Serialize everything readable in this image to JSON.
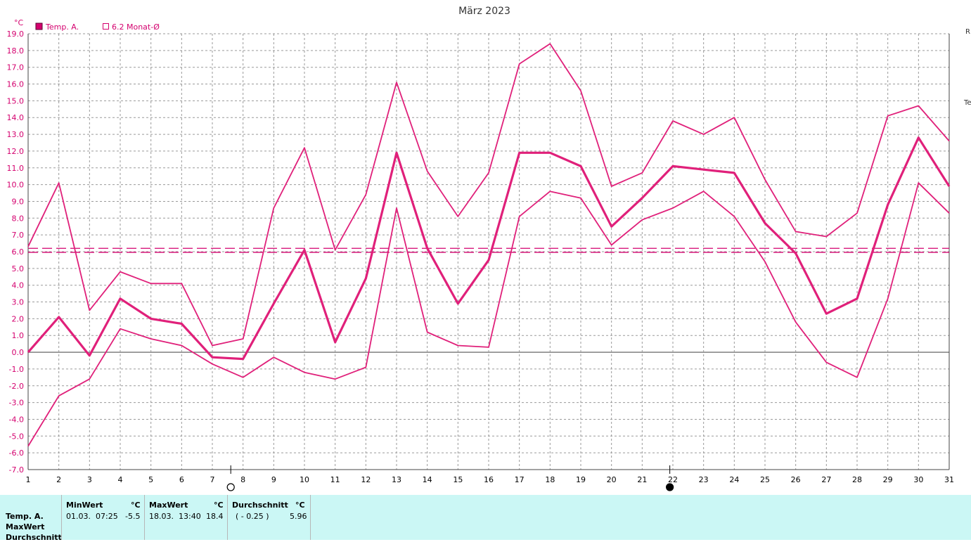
{
  "chart_data": {
    "type": "line",
    "title": "März 2023",
    "y_unit": "°C",
    "ylim": [
      -7,
      19
    ],
    "y_ticks": [
      "19.0",
      "18.0",
      "17.0",
      "16.0",
      "15.0",
      "14.0",
      "13.0",
      "12.0",
      "11.0",
      "10.0",
      "9.0",
      "8.0",
      "7.0",
      "6.0",
      "5.0",
      "4.0",
      "3.0",
      "2.0",
      "1.0",
      "0.0",
      "-1.0",
      "-2.0",
      "-3.0",
      "-4.0",
      "-5.0",
      "-6.0",
      "-7.0"
    ],
    "x": [
      1,
      2,
      3,
      4,
      5,
      6,
      7,
      8,
      9,
      10,
      11,
      12,
      13,
      14,
      15,
      16,
      17,
      18,
      19,
      20,
      21,
      22,
      23,
      24,
      25,
      26,
      27,
      28,
      29,
      30,
      31
    ],
    "x_ticks": [
      "1",
      "2",
      "3",
      "4",
      "5",
      "6",
      "7",
      "8",
      "9",
      "10",
      "11",
      "12",
      "13",
      "14",
      "15",
      "16",
      "17",
      "18",
      "19",
      "20",
      "21",
      "22",
      "23",
      "24",
      "25",
      "26",
      "27",
      "28",
      "29",
      "30",
      "31"
    ],
    "grid": true,
    "legend": [
      {
        "label": "Temp. A.",
        "style": "filled",
        "color": "#d4006e"
      },
      {
        "label": "6.2 Monat-Ø",
        "style": "hollow",
        "color": "#d4006e"
      }
    ],
    "legend_position": "top-left",
    "series": [
      {
        "role": "max",
        "color": "#e0207a",
        "values": [
          6.3,
          10.1,
          2.5,
          4.8,
          4.1,
          4.1,
          0.4,
          0.8,
          8.6,
          12.2,
          6.1,
          9.4,
          16.1,
          10.8,
          8.1,
          10.7,
          17.2,
          18.4,
          15.6,
          9.9,
          10.7,
          13.8,
          13.0,
          14.0,
          10.3,
          7.2,
          6.9,
          8.3,
          14.1,
          14.7,
          12.6
        ]
      },
      {
        "role": "mean",
        "color": "#e0207a",
        "values": [
          0.0,
          2.1,
          -0.2,
          3.2,
          2.0,
          1.7,
          -0.3,
          -0.4,
          2.9,
          6.1,
          0.6,
          4.4,
          11.9,
          6.2,
          2.9,
          5.5,
          11.9,
          11.9,
          11.1,
          7.5,
          9.2,
          11.1,
          10.9,
          10.7,
          7.7,
          5.9,
          2.3,
          3.2,
          8.8,
          12.8,
          9.9
        ]
      },
      {
        "role": "min",
        "color": "#e0207a",
        "values": [
          -5.6,
          -2.6,
          -1.6,
          1.4,
          0.8,
          0.4,
          -0.7,
          -1.5,
          -0.3,
          -1.2,
          -1.6,
          -0.9,
          8.6,
          1.2,
          0.4,
          0.3,
          8.1,
          9.6,
          9.2,
          6.4,
          7.9,
          8.6,
          9.6,
          8.1,
          5.4,
          1.8,
          -0.6,
          -1.5,
          3.2,
          10.1,
          8.3
        ]
      }
    ],
    "reference_lines": [
      {
        "role": "month_avg",
        "value": 5.96,
        "style": "dashed"
      },
      {
        "role": "month_avg_6_2",
        "value": 6.2,
        "style": "dashed"
      }
    ],
    "moon_phases": [
      {
        "symbol": "full-moon",
        "x": 7.6
      },
      {
        "symbol": "new-moon",
        "x": 21.9
      }
    ]
  },
  "edge_labels": [
    "R",
    "Te"
  ],
  "stats": {
    "row_labels": [
      "Temp. A.",
      "MaxWert",
      "Durchschnitt"
    ],
    "min": {
      "header": "MinWert",
      "unit": "°C",
      "date": "01.03.",
      "time": "07:25",
      "value": "-5.5"
    },
    "max": {
      "header": "MaxWert",
      "unit": "°C",
      "date": "18.03.",
      "time": "13:40",
      "value": "18.4"
    },
    "avg": {
      "header": "Durchschnitt",
      "unit": "°C",
      "note": "( - 0.25 )",
      "value": "5.96"
    }
  }
}
